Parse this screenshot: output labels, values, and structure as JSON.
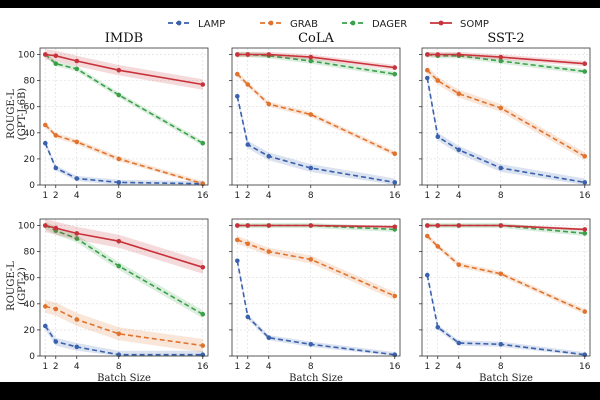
{
  "chart_data": {
    "type": "line",
    "legend": [
      "LAMP",
      "GRAB",
      "DAGER",
      "SOMP"
    ],
    "colors": {
      "LAMP": "#3a61ad",
      "GRAB": "#e0732e",
      "DAGER": "#3aa14a",
      "SOMP": "#c8323a"
    },
    "x": [
      1,
      2,
      4,
      8,
      16
    ],
    "xlim": [
      0.5,
      16.5
    ],
    "ylim": [
      0,
      105
    ],
    "xticks": [
      "1",
      "2",
      "4",
      "8",
      "16"
    ],
    "yticks": [
      "0",
      "20",
      "40",
      "60",
      "80",
      "100"
    ],
    "xlabel": "Batch Size",
    "row_labels": [
      {
        "line1": "ROUGE-L",
        "line2": "(GPT-J-6B)"
      },
      {
        "line1": "ROUGE-L",
        "line2": "(GPT-2)"
      }
    ],
    "col_titles": [
      "IMDB",
      "CoLA",
      "SST-2"
    ],
    "panels": [
      {
        "row": 0,
        "col": 0,
        "title": "IMDB",
        "series": [
          {
            "name": "LAMP",
            "values": [
              32,
              13,
              5,
              2,
              1
            ],
            "band": 2
          },
          {
            "name": "GRAB",
            "values": [
              46,
              38,
              33,
              20,
              1
            ],
            "band": 2
          },
          {
            "name": "DAGER",
            "values": [
              100,
              93,
              89,
              69,
              32
            ],
            "band": 2
          },
          {
            "name": "SOMP",
            "values": [
              100,
              99,
              95,
              88,
              77
            ],
            "band": 4
          }
        ]
      },
      {
        "row": 0,
        "col": 1,
        "title": "CoLA",
        "series": [
          {
            "name": "LAMP",
            "values": [
              68,
              31,
              22,
              13,
              2
            ],
            "band": 3
          },
          {
            "name": "GRAB",
            "values": [
              85,
              77,
              62,
              54,
              24
            ],
            "band": 2
          },
          {
            "name": "DAGER",
            "values": [
              100,
              100,
              99,
              95,
              85
            ],
            "band": 2
          },
          {
            "name": "SOMP",
            "values": [
              100,
              100,
              100,
              98,
              90
            ],
            "band": 2
          }
        ]
      },
      {
        "row": 0,
        "col": 2,
        "title": "SST-2",
        "series": [
          {
            "name": "LAMP",
            "values": [
              82,
              37,
              27,
              13,
              2
            ],
            "band": 3
          },
          {
            "name": "GRAB",
            "values": [
              88,
              80,
              70,
              59,
              22
            ],
            "band": 3
          },
          {
            "name": "DAGER",
            "values": [
              100,
              99,
              99,
              95,
              87
            ],
            "band": 2
          },
          {
            "name": "SOMP",
            "values": [
              100,
              100,
              100,
              98,
              93
            ],
            "band": 2
          }
        ]
      },
      {
        "row": 1,
        "col": 0,
        "title": "IMDB",
        "series": [
          {
            "name": "LAMP",
            "values": [
              23,
              11,
              7,
              1,
              1
            ],
            "band": 3
          },
          {
            "name": "GRAB",
            "values": [
              38,
              36,
              28,
              17,
              8
            ],
            "band": 5
          },
          {
            "name": "DAGER",
            "values": [
              100,
              96,
              90,
              69,
              32
            ],
            "band": 3
          },
          {
            "name": "SOMP",
            "values": [
              100,
              98,
              94,
              88,
              68
            ],
            "band": 5
          }
        ]
      },
      {
        "row": 1,
        "col": 1,
        "title": "CoLA",
        "series": [
          {
            "name": "LAMP",
            "values": [
              73,
              30,
              14,
              9,
              1
            ],
            "band": 2
          },
          {
            "name": "GRAB",
            "values": [
              89,
              86,
              80,
              74,
              46
            ],
            "band": 3
          },
          {
            "name": "DAGER",
            "values": [
              100,
              100,
              100,
              100,
              97
            ],
            "band": 2
          },
          {
            "name": "SOMP",
            "values": [
              100,
              100,
              100,
              100,
              99
            ],
            "band": 1
          }
        ]
      },
      {
        "row": 1,
        "col": 2,
        "title": "SST-2",
        "series": [
          {
            "name": "LAMP",
            "values": [
              62,
              22,
              10,
              9,
              1
            ],
            "band": 2
          },
          {
            "name": "GRAB",
            "values": [
              92,
              84,
              70,
              63,
              34
            ],
            "band": 2
          },
          {
            "name": "DAGER",
            "values": [
              100,
              100,
              100,
              100,
              94
            ],
            "band": 2
          },
          {
            "name": "SOMP",
            "values": [
              100,
              100,
              100,
              100,
              97
            ],
            "band": 1
          }
        ]
      }
    ]
  }
}
